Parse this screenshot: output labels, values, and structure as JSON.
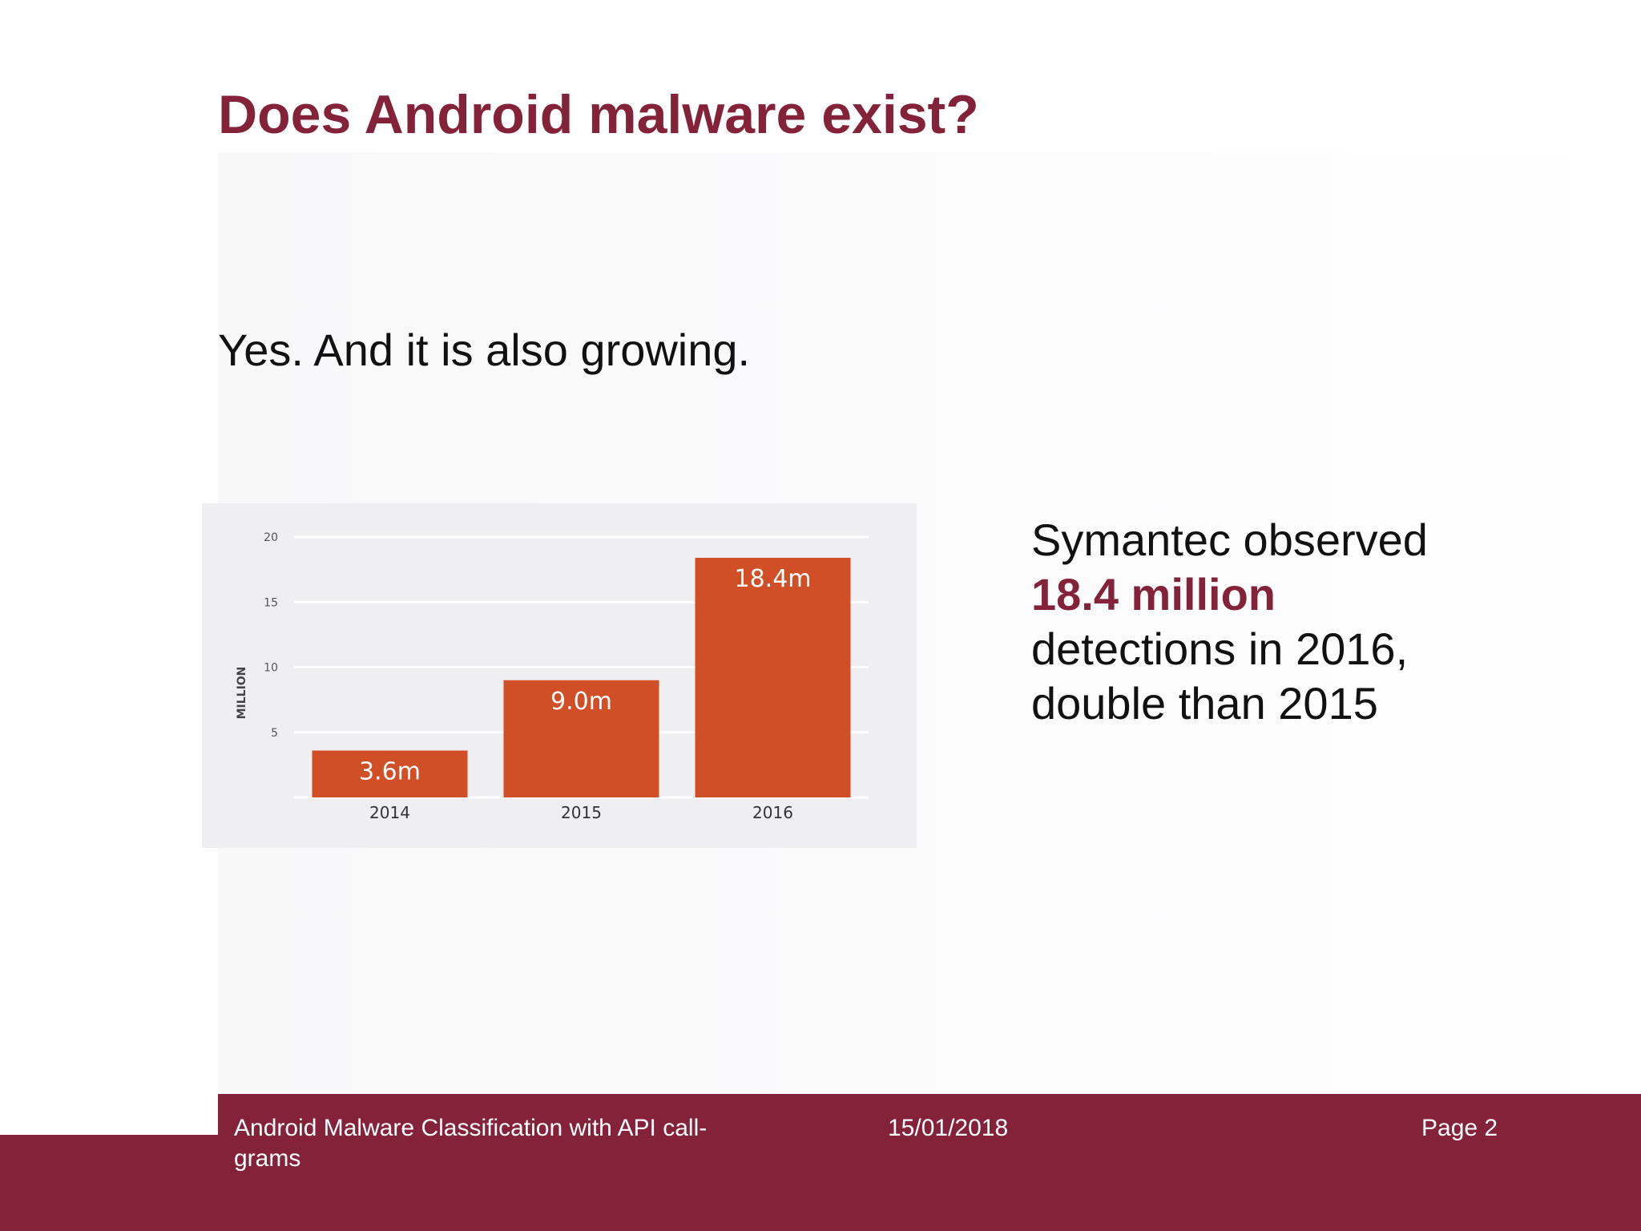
{
  "slide": {
    "title": "Does Android malware exist?",
    "subtitle": "Yes. And it is also growing."
  },
  "side_text": {
    "line1": "Symantec observed",
    "highlight": "18.4 million",
    "line3": "detections in 2016,",
    "line4": "double than 2015"
  },
  "footer": {
    "title": "Android Malware Classification with API call-grams",
    "date": "15/01/2018",
    "page": "Page 2"
  },
  "colors": {
    "accent": "#84223a",
    "bar": "#d04f27",
    "chart_bg": "#efeef0"
  },
  "chart_data": {
    "type": "bar",
    "categories": [
      "2014",
      "2015",
      "2016"
    ],
    "values": [
      3.6,
      9.0,
      18.4
    ],
    "data_labels": [
      "3.6m",
      "9.0m",
      "18.4m"
    ],
    "title": "",
    "xlabel": "",
    "ylabel": "MILLION",
    "ylim": [
      0,
      20
    ],
    "yticks": [
      5,
      10,
      15,
      20
    ],
    "grid": true
  }
}
